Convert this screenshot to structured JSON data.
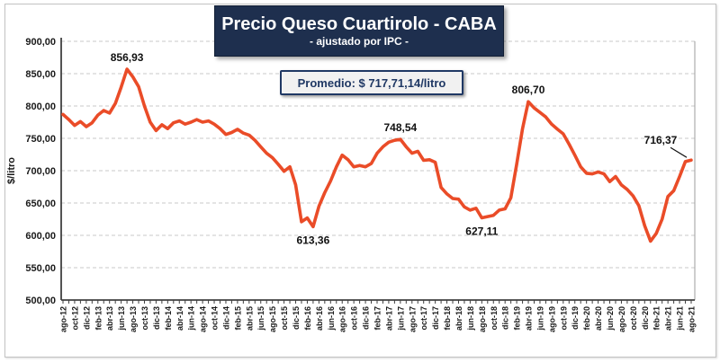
{
  "colors": {
    "line": "#ea4c28",
    "grid": "#c9c9c9",
    "axis": "#404040",
    "plot_right_border": "#9e9e9e",
    "title_box_bg": "#1e2f4e",
    "title_text": "#ffffff",
    "annotation_bg": "#f1f1f1",
    "annotation_text": "#1f3864"
  },
  "chart_data": {
    "type": "line",
    "title": "Precio Queso Cuartirolo - CABA",
    "subtitle": "- ajustado por IPC -",
    "annotation": "Promedio: $ 717,71,14/litro",
    "xlabel": "",
    "ylabel": "$/litro",
    "ylim": [
      500,
      900
    ],
    "ytick_step": 50,
    "x_tick_label_every": 2,
    "grid": "dashed-horizontal",
    "legend": "none",
    "line_color": "#ea4c28",
    "months": [
      "ago-12",
      "sep-12",
      "oct-12",
      "nov-12",
      "dic-12",
      "ene-13",
      "feb-13",
      "mar-13",
      "abr-13",
      "may-13",
      "jun-13",
      "jul-13",
      "ago-13",
      "sep-13",
      "oct-13",
      "nov-13",
      "dic-13",
      "ene-14",
      "feb-14",
      "mar-14",
      "abr-14",
      "may-14",
      "jun-14",
      "jul-14",
      "ago-14",
      "sep-14",
      "oct-14",
      "nov-14",
      "dic-14",
      "ene-15",
      "feb-15",
      "mar-15",
      "abr-15",
      "may-15",
      "jun-15",
      "jul-15",
      "ago-15",
      "sep-15",
      "oct-15",
      "nov-15",
      "dic-15",
      "ene-16",
      "feb-16",
      "mar-16",
      "abr-16",
      "may-16",
      "jun-16",
      "jul-16",
      "ago-16",
      "sep-16",
      "oct-16",
      "nov-16",
      "dic-16",
      "ene-17",
      "feb-17",
      "mar-17",
      "abr-17",
      "may-17",
      "jun-17",
      "jul-17",
      "ago-17",
      "sep-17",
      "oct-17",
      "nov-17",
      "dic-17",
      "ene-18",
      "feb-18",
      "mar-18",
      "abr-18",
      "may-18",
      "jun-18",
      "jul-18",
      "ago-18",
      "sep-18",
      "oct-18",
      "nov-18",
      "dic-18",
      "ene-19",
      "feb-19",
      "mar-19",
      "abr-19",
      "may-19",
      "jun-19",
      "jul-19",
      "ago-19",
      "sep-19",
      "oct-19",
      "nov-19",
      "dic-19",
      "ene-20",
      "feb-20",
      "mar-20",
      "abr-20",
      "may-20",
      "jun-20",
      "jul-20",
      "ago-20",
      "sep-20",
      "oct-20",
      "nov-20",
      "dic-20",
      "ene-21",
      "feb-21",
      "mar-21",
      "abr-21",
      "may-21",
      "jun-21",
      "jul-21",
      "ago-21"
    ],
    "values": [
      787,
      779,
      770,
      776,
      768,
      774,
      786,
      793,
      789,
      804,
      829,
      856.93,
      845,
      830,
      800,
      775,
      762,
      771,
      765,
      774,
      777,
      772,
      775,
      779,
      775,
      777,
      772,
      765,
      756,
      759,
      764,
      758,
      755,
      747,
      737,
      727,
      720,
      710,
      699,
      706,
      678,
      621,
      627,
      613.36,
      645,
      666,
      684,
      706,
      724,
      717,
      706,
      708,
      706,
      711,
      727,
      737,
      744,
      747,
      748.54,
      737,
      727,
      730,
      716,
      717,
      713,
      674,
      664,
      657,
      656,
      644,
      639,
      642,
      627.11,
      629,
      631,
      639,
      641,
      658,
      710,
      765,
      806.7,
      797,
      790,
      783,
      772,
      764,
      757,
      741,
      724,
      706,
      696,
      695,
      698,
      695,
      683,
      691,
      678,
      671,
      661,
      646,
      615,
      591,
      603,
      625,
      660,
      669,
      691,
      714,
      716.37
    ],
    "labeled_points": [
      {
        "index": 11,
        "text": "856,93",
        "placement": "above"
      },
      {
        "index": 43,
        "text": "613,36",
        "placement": "below"
      },
      {
        "index": 58,
        "text": "748,54",
        "placement": "above"
      },
      {
        "index": 72,
        "text": "627,11",
        "placement": "below"
      },
      {
        "index": 80,
        "text": "806,70",
        "placement": "above"
      },
      {
        "index": 108,
        "text": "716,37",
        "placement": "callout-left"
      }
    ]
  }
}
